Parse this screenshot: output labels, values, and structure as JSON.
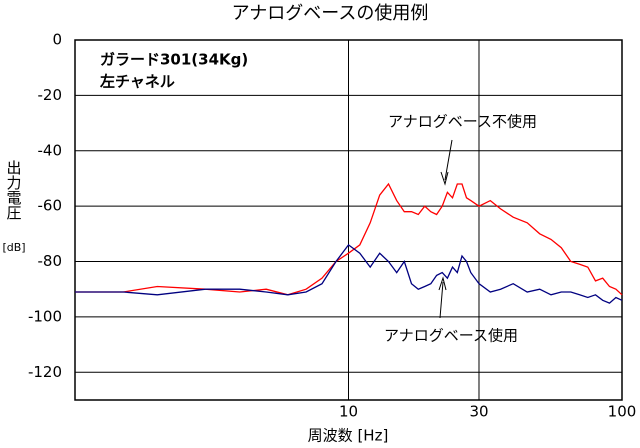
{
  "chart_data": {
    "type": "line",
    "title": "アナログベースの使用例",
    "xlabel": "周波数 [Hz]",
    "ylabel": "出力電圧",
    "ylabel_unit": "[dB]",
    "notes": [
      "ガラード301(34Kg)",
      "左チャネル"
    ],
    "x": [
      1,
      1.5,
      2,
      3,
      4,
      5,
      6,
      7,
      8,
      9,
      10,
      11,
      12,
      13,
      14,
      15,
      16,
      17,
      18,
      19,
      20,
      21,
      22,
      23,
      24,
      25,
      26,
      27,
      28,
      30,
      33,
      36,
      40,
      45,
      50,
      55,
      60,
      65,
      70,
      75,
      80,
      85,
      90,
      95,
      100
    ],
    "series": [
      {
        "name": "アナログベース不使用",
        "color": "#ff0000",
        "values": [
          -91,
          -91,
          -89,
          -90,
          -91,
          -90,
          -92,
          -90,
          -86,
          -80,
          -77,
          -74,
          -66,
          -56,
          -52,
          -58,
          -62,
          -62,
          -63,
          -60,
          -62,
          -63,
          -60,
          -55,
          -57,
          -52,
          -52,
          -57,
          -58,
          -60,
          -58,
          -61,
          -64,
          -66,
          -70,
          -72,
          -75,
          -80,
          -81,
          -82,
          -87,
          -86,
          -89,
          -90,
          -92
        ]
      },
      {
        "name": "アナログベース使用",
        "color": "#000080",
        "values": [
          -91,
          -91,
          -92,
          -90,
          -90,
          -91,
          -92,
          -91,
          -88,
          -80,
          -74,
          -77,
          -82,
          -77,
          -80,
          -84,
          -80,
          -88,
          -90,
          -89,
          -88,
          -85,
          -84,
          -86,
          -82,
          -84,
          -78,
          -80,
          -84,
          -88,
          -91,
          -90,
          -88,
          -91,
          -90,
          -92,
          -91,
          -91,
          -92,
          -93,
          -92,
          -94,
          -95,
          -93,
          -94
        ]
      }
    ],
    "xscale": "log",
    "xlim": [
      1,
      100
    ],
    "xticks": [
      10,
      30,
      100
    ],
    "ylim": [
      -130,
      0
    ],
    "yticks": [
      0,
      -20,
      -40,
      -60,
      -80,
      -100,
      -120
    ],
    "grid": true
  }
}
